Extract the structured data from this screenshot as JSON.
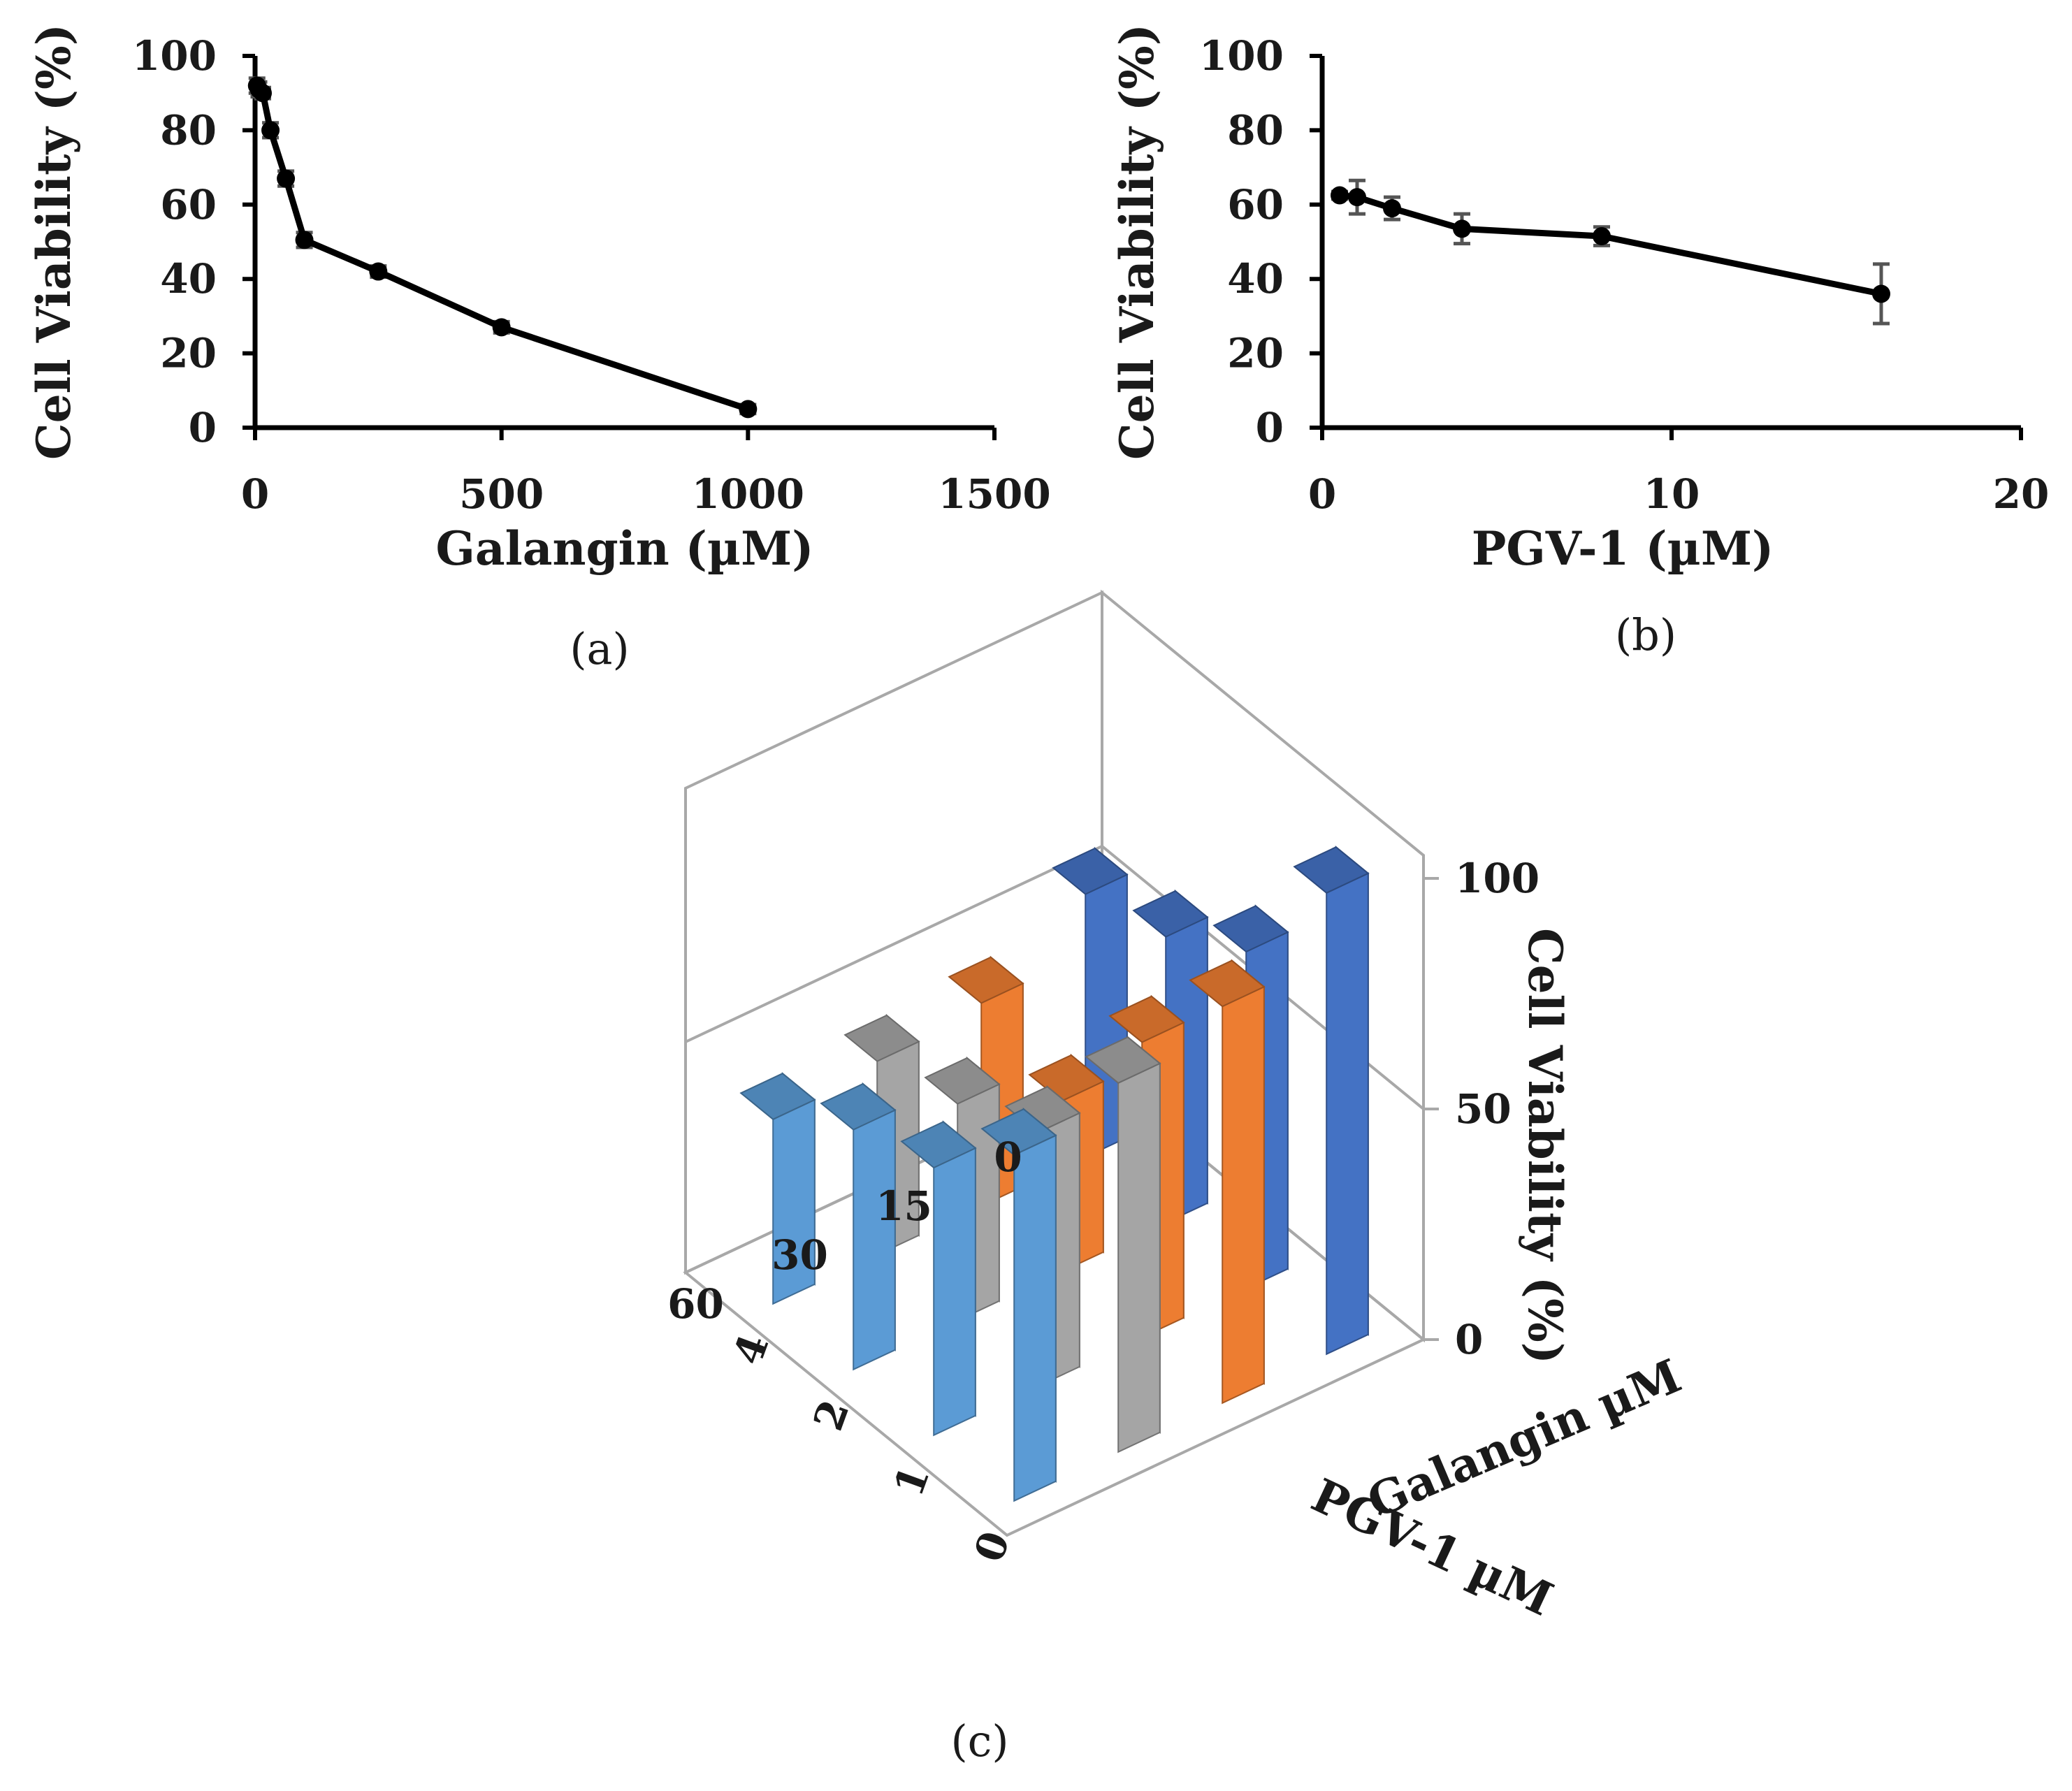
{
  "chart_data": [
    {
      "panel": "(a)",
      "type": "line",
      "xlabel": "Galangin (µM)",
      "ylabel": "Cell Viability (%)",
      "xlim": [
        0,
        1500
      ],
      "ylim": [
        0,
        100
      ],
      "xticks": [
        0,
        500,
        1000,
        1500
      ],
      "xtick_labels": [
        "0",
        "500",
        "1000",
        "1500"
      ],
      "yticks": [
        0,
        20,
        40,
        60,
        80,
        100
      ],
      "ytick_labels": [
        "0",
        "20",
        "40",
        "60",
        "80",
        "100"
      ],
      "series": [
        {
          "name": "Galangin",
          "color": "#000000",
          "x": [
            3.9,
            7.8,
            15.6,
            31.25,
            62.5,
            100,
            250,
            500,
            1000
          ],
          "y": [
            92,
            91,
            90,
            80,
            67,
            50.5,
            42,
            27,
            5
          ],
          "err": [
            2,
            2,
            1.5,
            2,
            2,
            2,
            1.5,
            1.5,
            1.2
          ]
        }
      ]
    },
    {
      "panel": "(b)",
      "type": "line",
      "xlabel": "PGV-1 (µM)",
      "ylabel": "Cell Viability (%)",
      "xlim": [
        0,
        20
      ],
      "ylim": [
        0,
        100
      ],
      "xticks": [
        0,
        10,
        20
      ],
      "xtick_labels": [
        "0",
        "10",
        "20"
      ],
      "yticks": [
        0,
        20,
        40,
        60,
        80,
        100
      ],
      "ytick_labels": [
        "0",
        "20",
        "40",
        "60",
        "80",
        "100"
      ],
      "series": [
        {
          "name": "PGV-1",
          "color": "#000000",
          "x": [
            0.5,
            1,
            2,
            4,
            8,
            16
          ],
          "y": [
            62.5,
            62,
            59,
            53.5,
            51.5,
            36
          ],
          "err": [
            1,
            4.5,
            3,
            4,
            2.5,
            8
          ]
        }
      ]
    },
    {
      "panel": "(c)",
      "type": "bar3d",
      "zlabel": "Cell Viability (%)",
      "xlabel": "Galangin µM",
      "ylabel": "PGV-1 µM",
      "galangin_levels": [
        "0",
        "15",
        "30",
        "60"
      ],
      "pgv1_levels": [
        "0",
        "1",
        "2",
        "4"
      ],
      "zlim": [
        0,
        100
      ],
      "zticks": [
        0,
        50,
        100
      ],
      "ztick_labels": [
        "0",
        "50",
        "100"
      ],
      "colors": {
        "0": "#4472C4",
        "15": "#ED7D31",
        "30": "#A5A5A5",
        "60": "#5B9BD5"
      },
      "values": [
        [
          100,
          73,
          62,
          57
        ],
        [
          86,
          64,
          37,
          44
        ],
        [
          80,
          55,
          47,
          42
        ],
        [
          75,
          58,
          52,
          40
        ]
      ],
      "values_note": "values[g][p]: g indexes galangin_levels, p indexes pgv1_levels"
    }
  ]
}
